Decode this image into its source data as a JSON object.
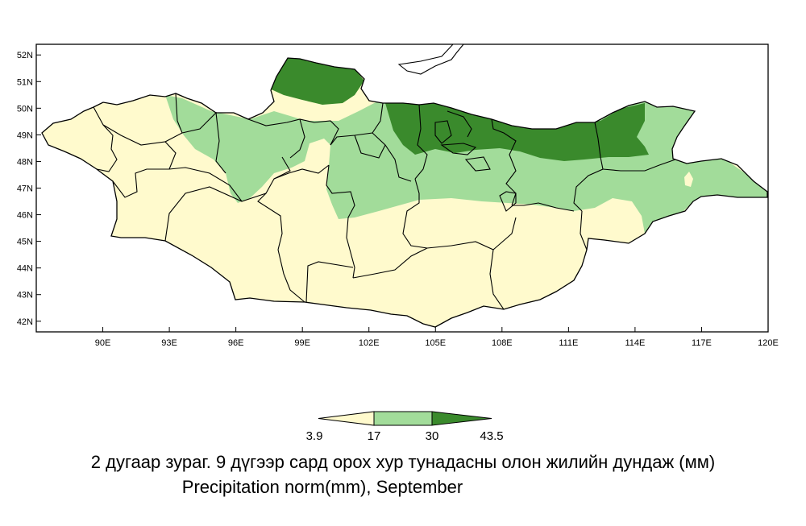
{
  "map": {
    "lon_ticks": [
      "90E",
      "93E",
      "96E",
      "99E",
      "102E",
      "105E",
      "108E",
      "111E",
      "114E",
      "117E",
      "120E"
    ],
    "lat_ticks": [
      "52N",
      "51N",
      "50N",
      "49N",
      "48N",
      "47N",
      "46N",
      "45N",
      "44N",
      "43N",
      "42N"
    ],
    "lon_range": [
      87,
      120
    ],
    "lat_range": [
      41.6,
      52.4
    ],
    "colors": {
      "low": "#fffacd",
      "mid": "#a2dc9a",
      "high": "#3a8a2c",
      "border": "#000000"
    }
  },
  "legend": {
    "labels": [
      "3.9",
      "17",
      "30",
      "43.5"
    ],
    "colors": [
      "#fffacd",
      "#a2dc9a",
      "#3a8a2c"
    ]
  },
  "caption": {
    "mongolian": "2 дугаар зураг. 9 дүгээр сард орох хур тунадасны олон жилийн дундаж (мм)",
    "english": "Precipitation norm(mm), September"
  }
}
